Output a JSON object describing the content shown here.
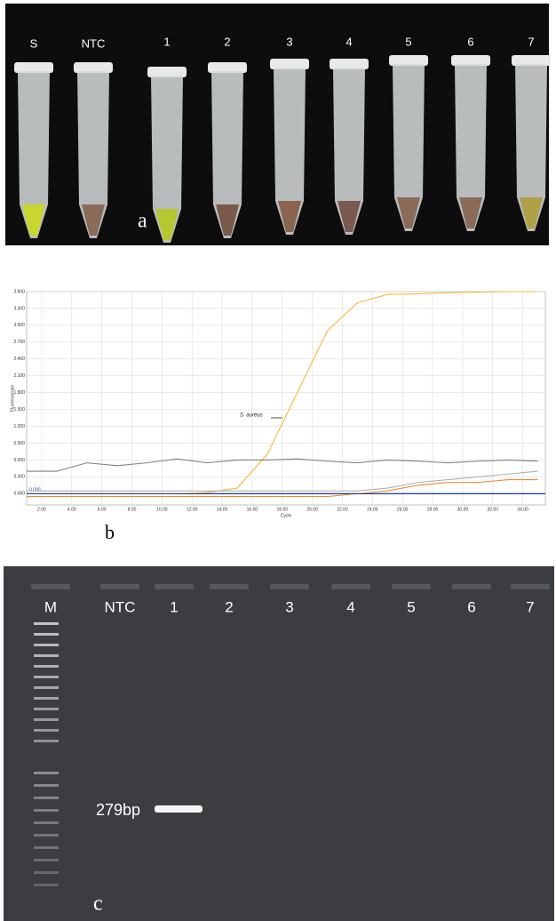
{
  "panel_a": {
    "tube_labels": [
      "S",
      "NTC",
      "1",
      "2",
      "3",
      "4",
      "5",
      "6",
      "7"
    ],
    "label": "a"
  },
  "chart_data": {
    "type": "line",
    "panel_label": "b",
    "xlabel": "Cycle",
    "ylabel": "Fluorescence",
    "annotation": "S. aureus",
    "threshold": {
      "value": 0,
      "label": "0.000"
    },
    "x": [
      1,
      3,
      5,
      7,
      9,
      11,
      13,
      15,
      17,
      19,
      21,
      23,
      25,
      27,
      29,
      31,
      33,
      35
    ],
    "series": [
      {
        "color": "#f5b93a",
        "values": [
          0,
          0,
          0,
          0,
          0,
          0,
          0.02,
          0.1,
          0.7,
          1.8,
          2.9,
          3.4,
          3.55,
          3.56,
          3.58,
          3.59,
          3.6,
          3.6
        ]
      },
      {
        "color": "#808080",
        "values": [
          0.4,
          0.4,
          0.55,
          0.5,
          0.55,
          0.62,
          0.55,
          0.6,
          0.6,
          0.62,
          0.58,
          0.55,
          0.6,
          0.58,
          0.55,
          0.58,
          0.6,
          0.58
        ]
      },
      {
        "color": "#b0b0b0",
        "values": [
          0.05,
          0.05,
          0.05,
          0.05,
          0.05,
          0.05,
          0.05,
          0.05,
          0.05,
          0.05,
          0.05,
          0.05,
          0.1,
          0.2,
          0.25,
          0.3,
          0.35,
          0.4
        ]
      },
      {
        "color": "#f08a30",
        "values": [
          -0.05,
          -0.05,
          -0.05,
          -0.05,
          -0.05,
          -0.05,
          -0.05,
          -0.05,
          -0.05,
          -0.05,
          -0.05,
          0,
          0.05,
          0.15,
          0.2,
          0.2,
          0.25,
          0.25
        ]
      },
      {
        "color": "#1f3fa0",
        "values": [
          0,
          0,
          0,
          0,
          0,
          0,
          0,
          0,
          0,
          0,
          0,
          0,
          0,
          0,
          0,
          0,
          0,
          0
        ]
      }
    ],
    "xlim": [
      1,
      35.5
    ],
    "ylim": [
      -0.2,
      3.6
    ],
    "xticks": [
      {
        "value": 2,
        "label": "2.00"
      },
      {
        "value": 4,
        "label": "4.00"
      },
      {
        "value": 6,
        "label": "6.00"
      },
      {
        "value": 8,
        "label": "8.00"
      },
      {
        "value": 10,
        "label": "10.00"
      },
      {
        "value": 12,
        "label": "12.00"
      },
      {
        "value": 14,
        "label": "14.00"
      },
      {
        "value": 16,
        "label": "16.00"
      },
      {
        "value": 18,
        "label": "18.00"
      },
      {
        "value": 20,
        "label": "20.00"
      },
      {
        "value": 22,
        "label": "22.00"
      },
      {
        "value": 24,
        "label": "24.00"
      },
      {
        "value": 26,
        "label": "26.00"
      },
      {
        "value": 28,
        "label": "28.00"
      },
      {
        "value": 30,
        "label": "30.00"
      },
      {
        "value": 32,
        "label": "32.00"
      },
      {
        "value": 34,
        "label": "34.00"
      }
    ],
    "yticks": [
      {
        "value": 0,
        "label": "0.000"
      },
      {
        "value": 0.3,
        "label": "0.300"
      },
      {
        "value": 0.6,
        "label": "0.600"
      },
      {
        "value": 0.9,
        "label": "0.900"
      },
      {
        "value": 1.2,
        "label": "1.200"
      },
      {
        "value": 1.5,
        "label": "1.500"
      },
      {
        "value": 1.8,
        "label": "1.800"
      },
      {
        "value": 2.1,
        "label": "2.100"
      },
      {
        "value": 2.4,
        "label": "2.400"
      },
      {
        "value": 2.7,
        "label": "2.700"
      },
      {
        "value": 3,
        "label": "3.000"
      },
      {
        "value": 3.3,
        "label": "3.300"
      },
      {
        "value": 3.6,
        "label": "3.600"
      }
    ],
    "grid": true
  },
  "panel_c": {
    "lane_labels": [
      "M",
      "NTC",
      "1",
      "2",
      "3",
      "4",
      "5",
      "6",
      "7"
    ],
    "band_label": "279bp",
    "label": "c"
  }
}
